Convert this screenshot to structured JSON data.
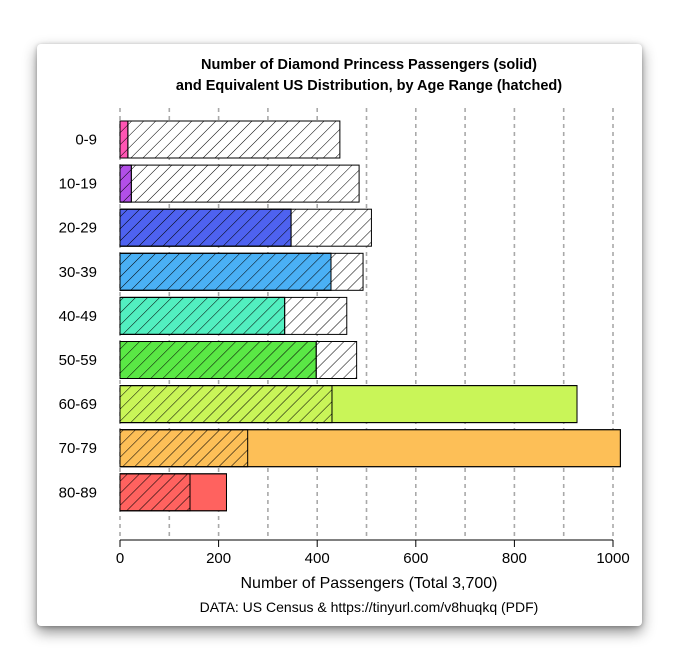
{
  "chart_data": {
    "type": "bar",
    "orientation": "horizontal",
    "title_lines": [
      "Number of Diamond Princess Passengers (solid)",
      "and Equivalent US Distribution, by Age Range (hatched)"
    ],
    "xlabel": "Number of Passengers (Total 3,700)",
    "source": "DATA: US Census & https://tinyurl.com/v8huqkq (PDF)",
    "categories": [
      "0-9",
      "10-19",
      "20-29",
      "30-39",
      "40-49",
      "50-59",
      "60-69",
      "70-79",
      "80-89"
    ],
    "series": [
      {
        "name": "Diamond Princess Passengers",
        "style": "solid",
        "values": [
          16,
          23,
          347,
          428,
          334,
          398,
          927,
          1015,
          216
        ]
      },
      {
        "name": "Equivalent US Distribution",
        "style": "hatched",
        "values": [
          446,
          485,
          510,
          493,
          460,
          480,
          430,
          259,
          142
        ]
      }
    ],
    "colors": [
      "#ff55b3",
      "#b24fe8",
      "#4e62f0",
      "#4ab0f5",
      "#52efc0",
      "#5ae845",
      "#c9f558",
      "#fdbf57",
      "#ff625f"
    ],
    "xlim": [
      0,
      1000
    ],
    "xticks": [
      0,
      200,
      400,
      600,
      800,
      1000
    ],
    "x_gridlines": [
      0,
      100,
      200,
      300,
      400,
      500,
      600,
      700,
      800,
      900,
      1000
    ],
    "grid": "vertical dashed"
  }
}
